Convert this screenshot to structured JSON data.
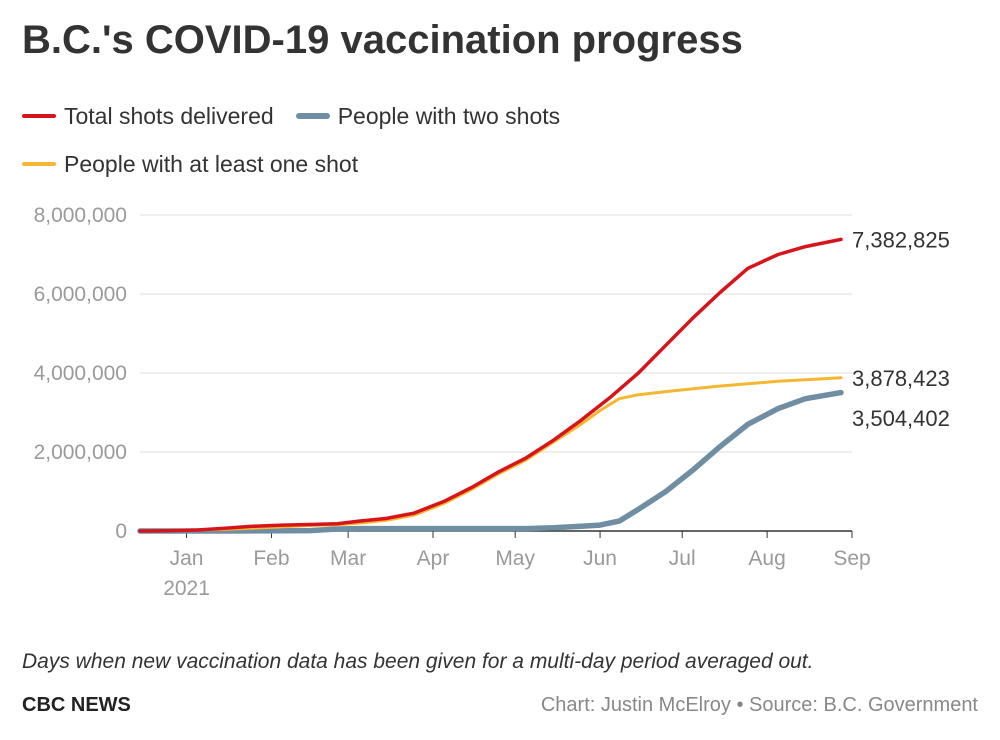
{
  "chart_data": {
    "type": "line",
    "title": "B.C.'s COVID-19 vaccination progress",
    "xlabel": "",
    "ylabel": "",
    "ylim": [
      0,
      8000000
    ],
    "yticks": [
      0,
      2000000,
      4000000,
      6000000,
      8000000
    ],
    "ytick_labels": [
      "0",
      "2,000,000",
      "4,000,000",
      "6,000,000",
      "8,000,000"
    ],
    "xlim": [
      "2020-12-15",
      "2021-09-01"
    ],
    "xticks": [
      "2021-01-01",
      "2021-02-01",
      "2021-03-01",
      "2021-04-01",
      "2021-05-01",
      "2021-06-01",
      "2021-07-01",
      "2021-08-01",
      "2021-09-01"
    ],
    "xtick_labels": [
      "Jan",
      "Feb",
      "Mar",
      "Apr",
      "May",
      "Jun",
      "Jul",
      "Aug",
      "Sep"
    ],
    "xtick_year_label": "2021",
    "grid": true,
    "legend_position": "top-left",
    "series": [
      {
        "name": "Total shots delivered",
        "color": "#d7141a",
        "end_label": "7,382,825",
        "points": [
          [
            "2020-12-15",
            0
          ],
          [
            "2020-12-25",
            5000
          ],
          [
            "2021-01-05",
            25000
          ],
          [
            "2021-01-15",
            70000
          ],
          [
            "2021-01-25",
            120000
          ],
          [
            "2021-02-05",
            150000
          ],
          [
            "2021-02-15",
            165000
          ],
          [
            "2021-02-25",
            185000
          ],
          [
            "2021-03-05",
            250000
          ],
          [
            "2021-03-15",
            320000
          ],
          [
            "2021-03-25",
            450000
          ],
          [
            "2021-04-05",
            750000
          ],
          [
            "2021-04-15",
            1100000
          ],
          [
            "2021-04-25",
            1500000
          ],
          [
            "2021-05-05",
            1850000
          ],
          [
            "2021-05-15",
            2300000
          ],
          [
            "2021-05-25",
            2800000
          ],
          [
            "2021-06-05",
            3400000
          ],
          [
            "2021-06-15",
            4000000
          ],
          [
            "2021-06-25",
            4700000
          ],
          [
            "2021-07-05",
            5400000
          ],
          [
            "2021-07-15",
            6050000
          ],
          [
            "2021-07-25",
            6650000
          ],
          [
            "2021-08-05",
            7000000
          ],
          [
            "2021-08-15",
            7200000
          ],
          [
            "2021-08-28",
            7382825
          ]
        ]
      },
      {
        "name": "People with two shots",
        "color": "#6f8ea3",
        "end_label": "3,504,402",
        "points": [
          [
            "2020-12-15",
            0
          ],
          [
            "2021-01-15",
            0
          ],
          [
            "2021-02-15",
            10000
          ],
          [
            "2021-02-25",
            50000
          ],
          [
            "2021-03-05",
            60000
          ],
          [
            "2021-04-05",
            60000
          ],
          [
            "2021-05-05",
            60000
          ],
          [
            "2021-05-15",
            80000
          ],
          [
            "2021-05-25",
            120000
          ],
          [
            "2021-06-01",
            150000
          ],
          [
            "2021-06-08",
            250000
          ],
          [
            "2021-06-15",
            550000
          ],
          [
            "2021-06-25",
            1000000
          ],
          [
            "2021-07-05",
            1550000
          ],
          [
            "2021-07-15",
            2150000
          ],
          [
            "2021-07-25",
            2700000
          ],
          [
            "2021-08-05",
            3100000
          ],
          [
            "2021-08-15",
            3350000
          ],
          [
            "2021-08-28",
            3504402
          ]
        ]
      },
      {
        "name": "People with at least one shot",
        "color": "#f4b731",
        "end_label": "3,878,423",
        "points": [
          [
            "2020-12-15",
            0
          ],
          [
            "2021-01-15",
            40000
          ],
          [
            "2021-02-15",
            140000
          ],
          [
            "2021-02-25",
            160000
          ],
          [
            "2021-03-05",
            200000
          ],
          [
            "2021-03-15",
            270000
          ],
          [
            "2021-03-25",
            400000
          ],
          [
            "2021-04-05",
            700000
          ],
          [
            "2021-04-15",
            1050000
          ],
          [
            "2021-04-25",
            1450000
          ],
          [
            "2021-05-05",
            1800000
          ],
          [
            "2021-05-15",
            2250000
          ],
          [
            "2021-05-25",
            2700000
          ],
          [
            "2021-06-01",
            3050000
          ],
          [
            "2021-06-08",
            3350000
          ],
          [
            "2021-06-15",
            3450000
          ],
          [
            "2021-06-25",
            3530000
          ],
          [
            "2021-07-05",
            3600000
          ],
          [
            "2021-07-15",
            3670000
          ],
          [
            "2021-07-25",
            3730000
          ],
          [
            "2021-08-05",
            3790000
          ],
          [
            "2021-08-15",
            3830000
          ],
          [
            "2021-08-28",
            3878423
          ]
        ]
      }
    ]
  },
  "note": "Days when new vaccination data has been given for a multi-day period averaged out.",
  "brand": "CBC NEWS",
  "credit": "Chart: Justin McElroy • Source: B.C. Government"
}
